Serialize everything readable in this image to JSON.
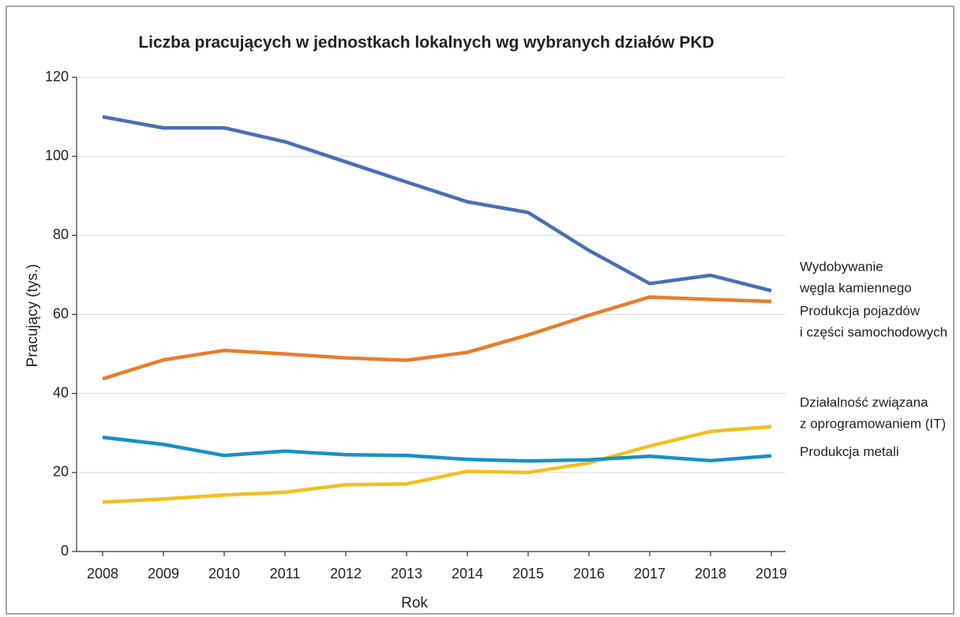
{
  "chart_data": {
    "type": "line",
    "title": "Liczba pracujących w jednostkach lokalnych wg wybranych działów PKD",
    "x_label": "Rok",
    "y_label": "Pracujący (tys.)",
    "categories": [
      "2008",
      "2009",
      "2010",
      "2011",
      "2012",
      "2013",
      "2014",
      "2015",
      "2016",
      "2017",
      "2018",
      "2019"
    ],
    "series": [
      {
        "name": "Wydobywanie\nwęgla kamiennego",
        "color": "#4a6fb5",
        "values": [
          110,
          107.2,
          107.2,
          103.7,
          98.6,
          93.5,
          88.5,
          85.8,
          76.2,
          67.8,
          69.9,
          66.0
        ]
      },
      {
        "name": "Produkcja pojazdów\ni części samochodowych",
        "color": "#e87d2e",
        "values": [
          43.7,
          48.5,
          50.9,
          50.0,
          49.0,
          48.4,
          50.4,
          54.8,
          59.8,
          64.4,
          63.8,
          63.3
        ]
      },
      {
        "name": "Działalność związana\nz oprogramowaniem (IT)",
        "color": "#f2bf1e",
        "values": [
          12.5,
          13.3,
          14.3,
          15.0,
          16.9,
          17.1,
          20.3,
          20.0,
          22.4,
          26.7,
          30.4,
          31.6
        ]
      },
      {
        "name": "Produkcja metali",
        "color": "#1a8fc7",
        "values": [
          28.9,
          27.1,
          24.3,
          25.4,
          24.5,
          24.3,
          23.3,
          22.9,
          23.2,
          24.1,
          23.0,
          24.2
        ]
      }
    ],
    "ylim": [
      0,
      120
    ],
    "yticks": [
      0,
      20,
      40,
      60,
      80,
      100,
      120
    ],
    "grid": true,
    "legend": "right"
  }
}
